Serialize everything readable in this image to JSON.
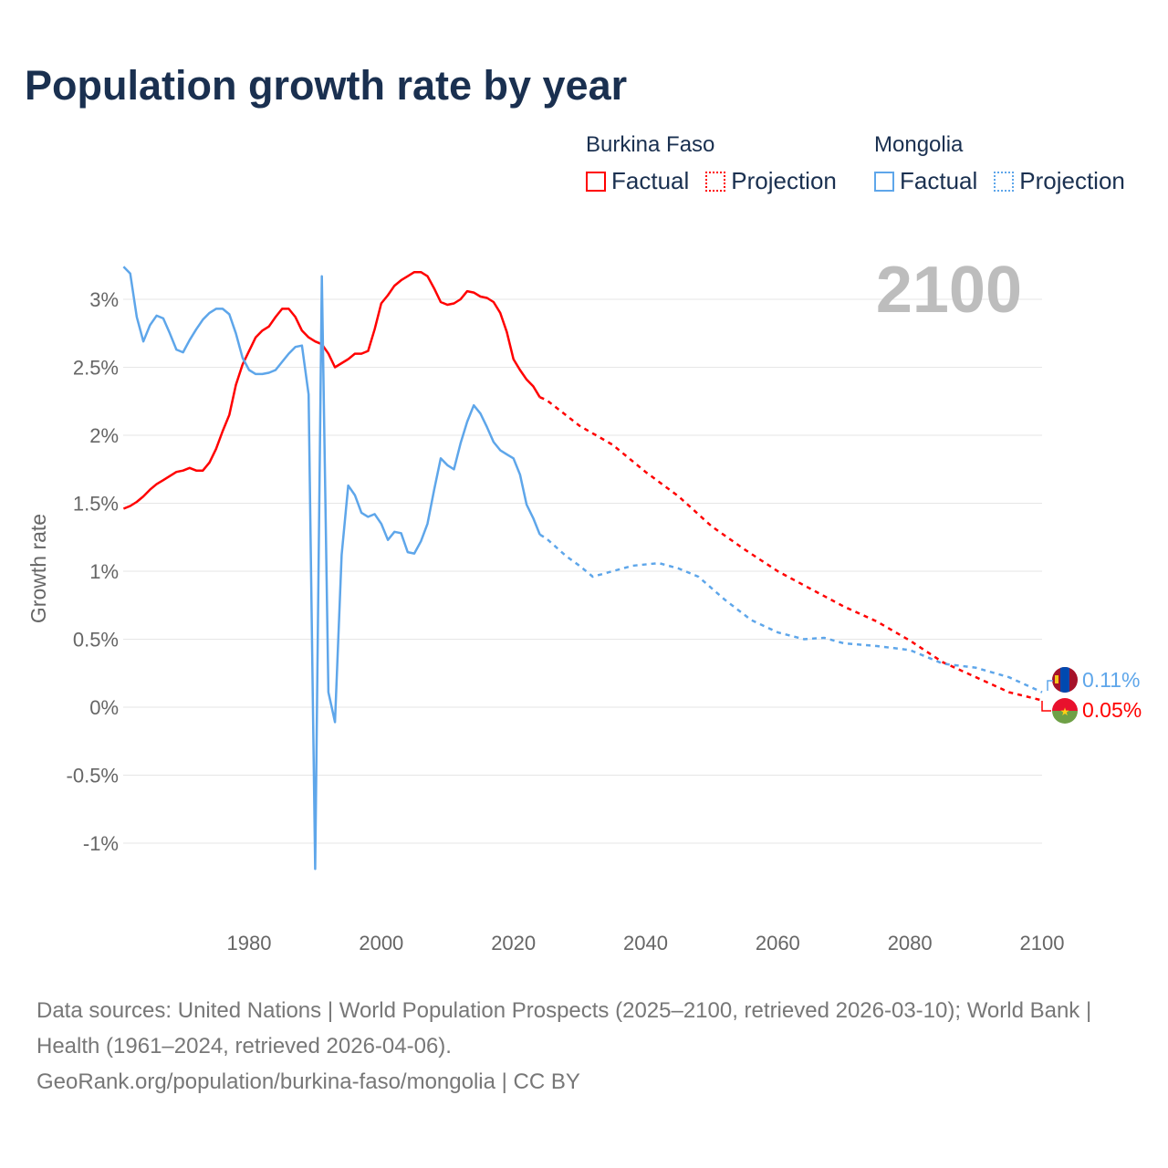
{
  "title": "Population growth rate by year",
  "legend": [
    {
      "group": "Burkina Faso",
      "factual_label": "Factual",
      "projection_label": "Projection",
      "color": "#ff0000"
    },
    {
      "group": "Mongolia",
      "factual_label": "Factual",
      "projection_label": "Projection",
      "color": "#5ea6ea"
    }
  ],
  "year_display": "2100",
  "end_labels": {
    "mongolia": "0.11%",
    "burkina_faso": "0.05%"
  },
  "flags": {
    "mongolia": "mongolia-flag-icon",
    "burkina_faso": "burkina-faso-flag-icon"
  },
  "source": {
    "line1": "Data sources: United Nations | World Population Prospects (2025–2100, retrieved 2026-03-10); World Bank | Health (1961–2024, retrieved 2026-04-06).",
    "line2": "GeoRank.org/population/burkina-faso/mongolia | CC BY"
  },
  "chart_data": {
    "type": "line",
    "title": "Population growth rate by year",
    "xlabel": "",
    "ylabel": "Growth rate",
    "xlim": [
      1961,
      2100
    ],
    "ylim": [
      -1.4,
      3.3
    ],
    "x_ticks": [
      1980,
      2000,
      2020,
      2040,
      2060,
      2080,
      2100
    ],
    "y_ticks": [
      -1,
      -0.5,
      0,
      0.5,
      1,
      1.5,
      2,
      2.5,
      3
    ],
    "y_tick_labels": [
      "-1%",
      "-0.5%",
      "0%",
      "0.5%",
      "1%",
      "1.5%",
      "2%",
      "2.5%",
      "3%"
    ],
    "grid": true,
    "legend_position": "top-right",
    "series": [
      {
        "name": "Burkina Faso Factual",
        "color": "#ff0000",
        "dashed": false,
        "x": [
          1961,
          1962,
          1963,
          1964,
          1965,
          1966,
          1967,
          1968,
          1969,
          1970,
          1971,
          1972,
          1973,
          1974,
          1975,
          1976,
          1977,
          1978,
          1979,
          1980,
          1981,
          1982,
          1983,
          1984,
          1985,
          1986,
          1987,
          1988,
          1989,
          1990,
          1991,
          1992,
          1993,
          1994,
          1995,
          1996,
          1997,
          1998,
          1999,
          2000,
          2001,
          2002,
          2003,
          2004,
          2005,
          2006,
          2007,
          2008,
          2009,
          2010,
          2011,
          2012,
          2013,
          2014,
          2015,
          2016,
          2017,
          2018,
          2019,
          2020,
          2021,
          2022,
          2023,
          2024
        ],
        "y": [
          1.46,
          1.48,
          1.51,
          1.55,
          1.6,
          1.64,
          1.67,
          1.7,
          1.73,
          1.74,
          1.76,
          1.74,
          1.74,
          1.8,
          1.9,
          2.03,
          2.15,
          2.37,
          2.52,
          2.62,
          2.72,
          2.77,
          2.8,
          2.87,
          2.93,
          2.93,
          2.87,
          2.77,
          2.72,
          2.69,
          2.67,
          2.6,
          2.5,
          2.53,
          2.56,
          2.6,
          2.6,
          2.62,
          2.78,
          2.97,
          3.03,
          3.1,
          3.14,
          3.17,
          3.2,
          3.2,
          3.17,
          3.08,
          2.98,
          2.96,
          2.97,
          3.0,
          3.06,
          3.05,
          3.02,
          3.01,
          2.98,
          2.9,
          2.76,
          2.56,
          2.48,
          2.41,
          2.36,
          2.28
        ]
      },
      {
        "name": "Burkina Faso Projection",
        "color": "#ff0000",
        "dashed": true,
        "x": [
          2024,
          2025,
          2030,
          2035,
          2040,
          2045,
          2050,
          2055,
          2060,
          2065,
          2070,
          2075,
          2080,
          2085,
          2090,
          2095,
          2100
        ],
        "y": [
          2.28,
          2.26,
          2.07,
          1.93,
          1.73,
          1.55,
          1.33,
          1.16,
          1.0,
          0.87,
          0.74,
          0.63,
          0.49,
          0.33,
          0.22,
          0.11,
          0.05
        ]
      },
      {
        "name": "Mongolia Factual",
        "color": "#5ea6ea",
        "dashed": false,
        "x": [
          1961,
          1962,
          1963,
          1964,
          1965,
          1966,
          1967,
          1968,
          1969,
          1970,
          1971,
          1972,
          1973,
          1974,
          1975,
          1976,
          1977,
          1978,
          1979,
          1980,
          1981,
          1982,
          1983,
          1984,
          1985,
          1986,
          1987,
          1988,
          1989,
          1990,
          1991,
          1992,
          1993,
          1994,
          1995,
          1996,
          1997,
          1998,
          1999,
          2000,
          2001,
          2002,
          2003,
          2004,
          2005,
          2006,
          2007,
          2008,
          2009,
          2010,
          2011,
          2012,
          2013,
          2014,
          2015,
          2016,
          2017,
          2018,
          2019,
          2020,
          2021,
          2022,
          2023,
          2024
        ],
        "y": [
          3.24,
          3.19,
          2.87,
          2.69,
          2.81,
          2.88,
          2.86,
          2.75,
          2.63,
          2.61,
          2.7,
          2.78,
          2.85,
          2.9,
          2.93,
          2.93,
          2.89,
          2.75,
          2.57,
          2.48,
          2.45,
          2.45,
          2.46,
          2.48,
          2.54,
          2.6,
          2.65,
          2.66,
          2.3,
          -1.19,
          3.17,
          0.11,
          -0.11,
          1.12,
          1.63,
          1.56,
          1.43,
          1.4,
          1.42,
          1.35,
          1.23,
          1.29,
          1.28,
          1.14,
          1.13,
          1.22,
          1.35,
          1.6,
          1.83,
          1.78,
          1.75,
          1.94,
          2.1,
          2.22,
          2.16,
          2.06,
          1.95,
          1.89,
          1.86,
          1.83,
          1.71,
          1.49,
          1.39,
          1.27
        ]
      },
      {
        "name": "Mongolia Projection",
        "color": "#5ea6ea",
        "dashed": true,
        "x": [
          2024,
          2025,
          2028,
          2030,
          2032,
          2035,
          2038,
          2042,
          2045,
          2048,
          2052,
          2056,
          2060,
          2064,
          2067,
          2070,
          2075,
          2080,
          2085,
          2090,
          2095,
          2100
        ],
        "y": [
          1.27,
          1.24,
          1.11,
          1.04,
          0.96,
          1.0,
          1.04,
          1.06,
          1.02,
          0.96,
          0.79,
          0.64,
          0.55,
          0.5,
          0.51,
          0.47,
          0.45,
          0.42,
          0.32,
          0.29,
          0.22,
          0.11
        ]
      }
    ]
  }
}
